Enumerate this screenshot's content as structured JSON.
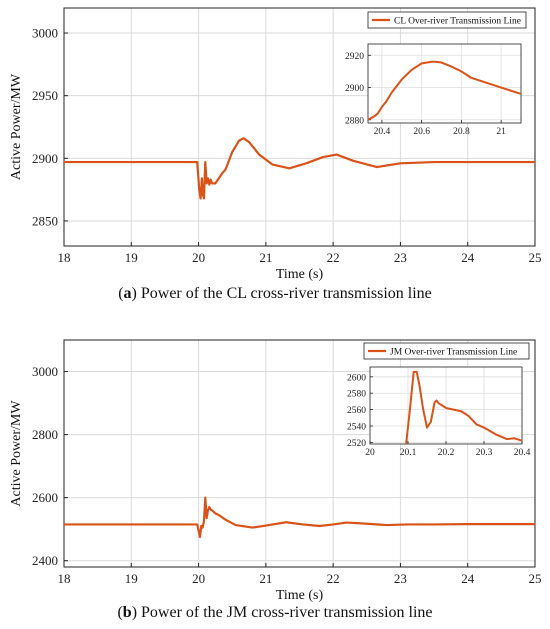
{
  "chart_data": [
    {
      "type": "line",
      "caption_letter": "a",
      "caption_text": "Power of the CL cross-river transmission line",
      "xlabel": "Time (s)",
      "ylabel": "Active Power/MW",
      "xlim": [
        18,
        25
      ],
      "ylim": [
        2830,
        3020
      ],
      "xticks": [
        18,
        19,
        20,
        21,
        22,
        23,
        24,
        25
      ],
      "yticks": [
        2850,
        2900,
        2950,
        3000
      ],
      "grid": true,
      "legend_placement": "top-right",
      "series": [
        {
          "name": "CL Over-river Transmission Line",
          "color": "#D95319",
          "x": [
            18.0,
            19.0,
            19.98,
            20.01,
            20.03,
            20.05,
            20.06,
            20.08,
            20.1,
            20.12,
            20.14,
            20.16,
            20.18,
            20.2,
            20.25,
            20.3,
            20.35,
            20.4,
            20.5,
            20.6,
            20.67,
            20.75,
            20.9,
            21.1,
            21.35,
            21.6,
            21.85,
            22.05,
            22.3,
            22.65,
            23.0,
            23.5,
            24.0,
            24.5,
            25.0
          ],
          "y": [
            2897,
            2897,
            2897,
            2875,
            2868,
            2884,
            2872,
            2868,
            2897,
            2880,
            2884,
            2879,
            2883,
            2880,
            2880,
            2884,
            2888,
            2891,
            2905,
            2914,
            2916,
            2913,
            2903,
            2895,
            2892,
            2896,
            2901,
            2903,
            2898,
            2893,
            2896,
            2897,
            2897,
            2897,
            2897
          ]
        }
      ],
      "inset": {
        "xlim": [
          20.33,
          21.1
        ],
        "ylim": [
          2878,
          2927
        ],
        "xticks": [
          20.4,
          20.6,
          20.8,
          21
        ],
        "xtick_labels": [
          "20.4",
          "20.6",
          "20.8",
          "21"
        ],
        "yticks": [
          2880,
          2900,
          2920
        ],
        "x": [
          20.33,
          20.36,
          20.38,
          20.4,
          20.42,
          20.45,
          20.5,
          20.55,
          20.6,
          20.65,
          20.67,
          20.7,
          20.75,
          20.8,
          20.85,
          20.9,
          20.95,
          21.0,
          21.05,
          21.1
        ],
        "y": [
          2880,
          2882,
          2884,
          2888,
          2891,
          2897,
          2905,
          2911,
          2915,
          2916,
          2916,
          2915.5,
          2913,
          2910,
          2906,
          2904,
          2902,
          2900,
          2898,
          2896
        ]
      }
    },
    {
      "type": "line",
      "caption_letter": "b",
      "caption_text": "Power of the JM cross-river transmission line",
      "xlabel": "Time (s)",
      "ylabel": "Active Power/MW",
      "xlim": [
        18,
        25
      ],
      "ylim": [
        2380,
        3100
      ],
      "xticks": [
        18,
        19,
        20,
        21,
        22,
        23,
        24,
        25
      ],
      "yticks": [
        2400,
        2600,
        2800,
        3000
      ],
      "grid": true,
      "legend_placement": "top-right",
      "series": [
        {
          "name": "JM Over-river Transmission Line",
          "color": "#D95319",
          "x": [
            18.0,
            19.0,
            19.98,
            20.02,
            20.04,
            20.06,
            20.08,
            20.1,
            20.12,
            20.14,
            20.16,
            20.18,
            20.2,
            20.25,
            20.3,
            20.4,
            20.55,
            20.8,
            21.05,
            21.3,
            21.55,
            21.8,
            22.0,
            22.2,
            22.45,
            22.8,
            23.1,
            23.5,
            24.0,
            24.5,
            25.0
          ],
          "y": [
            2515,
            2515,
            2515,
            2475,
            2510,
            2505,
            2525,
            2600,
            2535,
            2560,
            2570,
            2562,
            2560,
            2550,
            2545,
            2530,
            2513,
            2505,
            2513,
            2522,
            2515,
            2510,
            2515,
            2521,
            2518,
            2513,
            2515,
            2515,
            2516,
            2516,
            2516
          ]
        }
      ],
      "inset": {
        "xlim": [
          20.0,
          20.4
        ],
        "ylim": [
          2518,
          2612
        ],
        "xticks": [
          20,
          20.1,
          20.2,
          20.3,
          20.4
        ],
        "xtick_labels": [
          "20",
          "20.1",
          "20.2",
          "20.3",
          "20.4"
        ],
        "yticks": [
          2520,
          2540,
          2560,
          2580,
          2600
        ],
        "x": [
          20.095,
          20.105,
          20.115,
          20.123,
          20.13,
          20.14,
          20.15,
          20.16,
          20.17,
          20.175,
          20.18,
          20.19,
          20.2,
          20.22,
          20.24,
          20.26,
          20.28,
          20.3,
          20.33,
          20.36,
          20.38,
          20.4
        ],
        "y": [
          2518,
          2560,
          2606,
          2606,
          2590,
          2560,
          2538,
          2545,
          2569,
          2571,
          2568,
          2565,
          2562,
          2560,
          2558,
          2552,
          2542,
          2538,
          2530,
          2524,
          2525,
          2522
        ]
      }
    }
  ]
}
